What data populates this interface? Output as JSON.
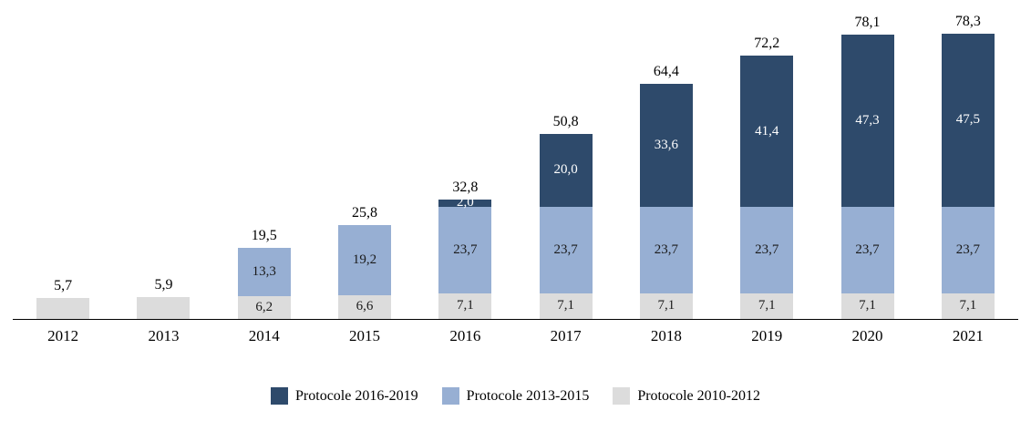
{
  "chart_data": {
    "type": "bar",
    "subtype": "stacked-bar",
    "title": "",
    "xlabel": "",
    "ylabel": "",
    "ylim": [
      0,
      80
    ],
    "grid": false,
    "legend_position": "bottom",
    "decimal_separator": ",",
    "categories": [
      "2012",
      "2013",
      "2014",
      "2015",
      "2016",
      "2017",
      "2018",
      "2019",
      "2020",
      "2021"
    ],
    "totals_display": [
      "5,7",
      "5,9",
      "19,5",
      "25,8",
      "32,8",
      "50,8",
      "64,4",
      "72,2",
      "78,1",
      "78,3"
    ],
    "totals_values": [
      5.7,
      5.9,
      19.5,
      25.8,
      32.8,
      50.8,
      64.4,
      72.2,
      78.1,
      78.3
    ],
    "series": [
      {
        "name": "Protocole 2016-2019",
        "color": "#2E4A6B",
        "label_color": "#FFFFFF",
        "values": [
          0,
          0,
          0,
          0,
          2.0,
          20.0,
          33.6,
          41.4,
          47.3,
          47.5
        ],
        "labels": [
          "",
          "",
          "",
          "",
          "2,0",
          "20,0",
          "33,6",
          "41,4",
          "47,3",
          "47,5"
        ]
      },
      {
        "name": "Protocole 2013-2015",
        "color": "#97AFD3",
        "label_color": "#1A1A1A",
        "values": [
          0,
          0,
          13.3,
          19.2,
          23.7,
          23.7,
          23.7,
          23.7,
          23.7,
          23.7
        ],
        "labels": [
          "",
          "",
          "13,3",
          "19,2",
          "23,7",
          "23,7",
          "23,7",
          "23,7",
          "23,7",
          "23,7"
        ]
      },
      {
        "name": "Protocole 2010-2012",
        "color": "#DCDCDC",
        "label_color": "#1A1A1A",
        "values": [
          5.7,
          5.9,
          6.2,
          6.6,
          7.1,
          7.1,
          7.1,
          7.1,
          7.1,
          7.1
        ],
        "labels": [
          "",
          "",
          "6,2",
          "6,6",
          "7,1",
          "7,1",
          "7,1",
          "7,1",
          "7,1",
          "7,1"
        ]
      }
    ]
  }
}
